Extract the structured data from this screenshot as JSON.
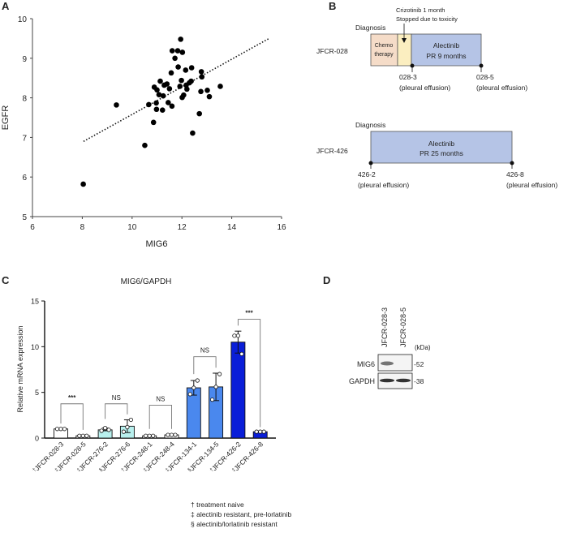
{
  "panels": {
    "a": "A",
    "b": "B",
    "c": "C",
    "d": "D"
  },
  "chart_data": [
    {
      "type": "scatter",
      "xlabel": "MIG6",
      "ylabel": "EGFR",
      "xlim": [
        6,
        16
      ],
      "ylim": [
        5,
        10
      ],
      "xticks": [
        6,
        8,
        10,
        12,
        14,
        16
      ],
      "yticks": [
        5,
        6,
        7,
        8,
        9,
        10
      ],
      "grid": false,
      "trendline": {
        "style": "dotted",
        "from": [
          8.05,
          6.9
        ],
        "to": [
          15.5,
          9.5
        ]
      },
      "points": [
        [
          8.04,
          5.82
        ],
        [
          9.37,
          7.82
        ],
        [
          10.51,
          6.8
        ],
        [
          10.86,
          7.38
        ],
        [
          10.67,
          7.83
        ],
        [
          10.97,
          7.87
        ],
        [
          10.98,
          7.71
        ],
        [
          10.89,
          8.27
        ],
        [
          11.0,
          8.2
        ],
        [
          11.08,
          8.08
        ],
        [
          11.13,
          8.42
        ],
        [
          11.22,
          7.69
        ],
        [
          11.25,
          8.05
        ],
        [
          11.29,
          8.32
        ],
        [
          11.4,
          8.35
        ],
        [
          11.45,
          7.88
        ],
        [
          11.5,
          8.23
        ],
        [
          11.6,
          7.79
        ],
        [
          11.57,
          8.63
        ],
        [
          11.61,
          9.19
        ],
        [
          11.72,
          9.0
        ],
        [
          11.83,
          9.19
        ],
        [
          11.85,
          8.78
        ],
        [
          11.92,
          8.29
        ],
        [
          11.95,
          9.48
        ],
        [
          11.98,
          8.44
        ],
        [
          12.02,
          9.15
        ],
        [
          12.01,
          8.01
        ],
        [
          12.07,
          8.07
        ],
        [
          12.15,
          8.7
        ],
        [
          12.17,
          8.32
        ],
        [
          12.2,
          8.22
        ],
        [
          12.3,
          8.38
        ],
        [
          12.37,
          8.42
        ],
        [
          12.39,
          8.76
        ],
        [
          12.43,
          7.11
        ],
        [
          12.7,
          7.6
        ],
        [
          12.76,
          8.16
        ],
        [
          12.78,
          8.66
        ],
        [
          12.8,
          8.53
        ],
        [
          13.02,
          8.19
        ],
        [
          13.1,
          8.03
        ],
        [
          13.54,
          8.29
        ]
      ]
    },
    {
      "type": "bar",
      "title": "MIG6/GAPDH",
      "ylabel": "Relative mRNA expression",
      "ylim": [
        0,
        15
      ],
      "yticks": [
        0,
        5,
        10,
        15
      ],
      "categories": [
        {
          "mark": "†",
          "name": "JFCR-028-3"
        },
        {
          "mark": "‡",
          "name": "JFCR-028-5"
        },
        {
          "mark": "‡",
          "name": "JFCR-276-2"
        },
        {
          "mark": "§",
          "name": "JFCR-276-6"
        },
        {
          "mark": "†",
          "name": "JFCR-248-1"
        },
        {
          "mark": "‡",
          "name": "JFCR-248-4"
        },
        {
          "mark": "‡",
          "name": "JFCR-134-1"
        },
        {
          "mark": "§",
          "name": "JFCR-134-5"
        },
        {
          "mark": "†",
          "name": "JFCR-426-2"
        },
        {
          "mark": "‡",
          "name": "JFCR-426-8"
        }
      ],
      "values": [
        1.0,
        0.25,
        0.9,
        1.3,
        0.25,
        0.35,
        5.5,
        5.6,
        10.5,
        0.7
      ],
      "error": [
        [
          1.0,
          1.0
        ],
        [
          0.25,
          0.25
        ],
        [
          0.8,
          1.1
        ],
        [
          0.6,
          2.0
        ],
        [
          0.25,
          0.25
        ],
        [
          0.35,
          0.35
        ],
        [
          4.7,
          6.3
        ],
        [
          4.1,
          7.1
        ],
        [
          9.3,
          11.7
        ],
        [
          0.65,
          0.75
        ]
      ],
      "replicates": [
        [
          1,
          1,
          1
        ],
        [
          0.25,
          0.25,
          0.25
        ],
        [
          0.8,
          1.1,
          0.9
        ],
        [
          0.7,
          1.2,
          2.0
        ],
        [
          0.25,
          0.25,
          0.25
        ],
        [
          0.35,
          0.35,
          0.35
        ],
        [
          4.8,
          5.5,
          6.3
        ],
        [
          4.2,
          5.6,
          7.0
        ],
        [
          11.2,
          11.2,
          9.2
        ],
        [
          0.7,
          0.7,
          0.7
        ]
      ],
      "colors": [
        "#ffffff",
        "#ffffff",
        "#b8f0ee",
        "#b8f0ee",
        "#ffffff",
        "#ffffff",
        "#4a88ee",
        "#4a88ee",
        "#0a1ed8",
        "#0a1ed8"
      ],
      "comparisons": [
        {
          "pair": [
            0,
            1
          ],
          "label": "***",
          "top": 3.75,
          "legs": [
            1.6,
            0.9
          ]
        },
        {
          "pair": [
            2,
            3
          ],
          "label": "NS",
          "top": 3.75,
          "legs": [
            2.1,
            2.6
          ]
        },
        {
          "pair": [
            4,
            5
          ],
          "label": "NS",
          "top": 3.6,
          "legs": [
            1.0,
            1.0
          ]
        },
        {
          "pair": [
            6,
            7
          ],
          "label": "NS",
          "top": 8.9,
          "legs": [
            7.0,
            7.7
          ]
        },
        {
          "pair": [
            8,
            9
          ],
          "label": "***",
          "top": 13.0,
          "legs": [
            12.3,
            1.2
          ]
        }
      ],
      "footnotes": [
        "† treatment naive",
        "‡ alectinib resistant, pre-lorlatinib",
        "§ alectinib/lorlatinib resistant"
      ]
    }
  ],
  "timeline": {
    "p1": {
      "patient": "JFCR-028",
      "diagnosis": "Diagnosis",
      "crizo_line1": "Crizotinib 1 month",
      "crizo_line2": "Stopped due to toxicity",
      "chemo_line1": "Chemo",
      "chemo_line2": "therapy",
      "drug": "Alectinib",
      "response": "PR 9 months",
      "s1": "028-3",
      "s2": "028-5",
      "site": "(pleural effusion)",
      "colors": {
        "chemo": "#f5dcc8",
        "crizo": "#fbeec0",
        "alectinib": "#b5c4e6"
      }
    },
    "p2": {
      "patient": "JFCR-426",
      "diagnosis": "Diagnosis",
      "drug": "Alectinib",
      "response": "PR 25 months",
      "s1": "426-2",
      "s2": "426-8",
      "site": "(pleural effusion)"
    }
  },
  "blot": {
    "lanes": [
      "JFCR-028-3",
      "JFCR-028-5"
    ],
    "unit": "(kDa)",
    "rows": [
      {
        "label": "MIG6",
        "kda": "52"
      },
      {
        "label": "GAPDH",
        "kda": "38"
      }
    ]
  }
}
